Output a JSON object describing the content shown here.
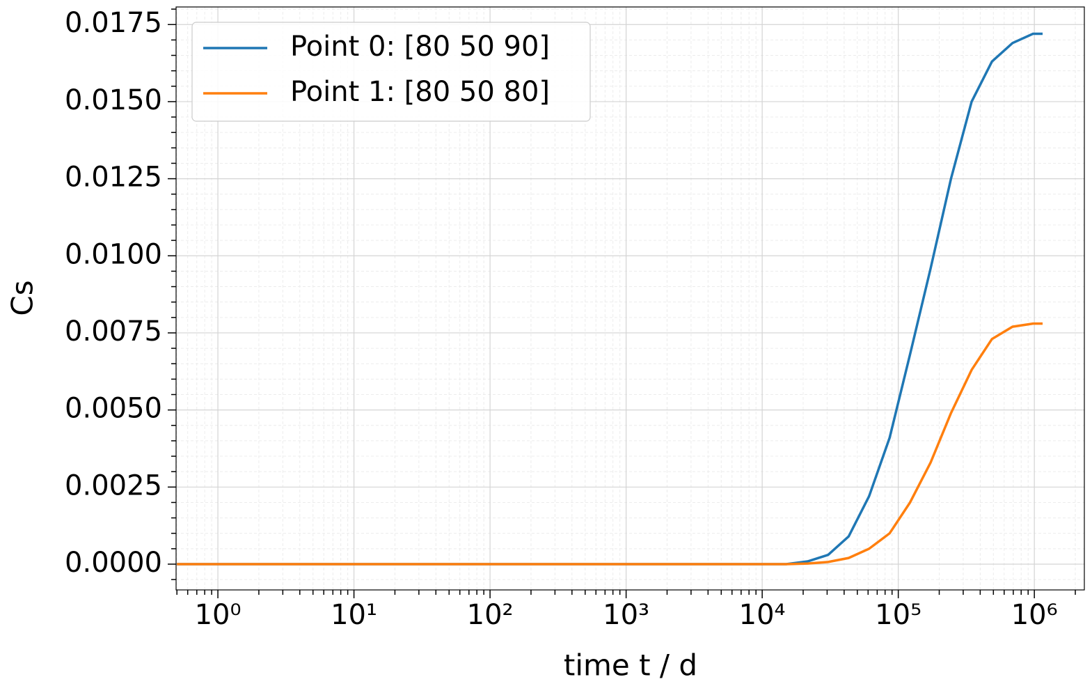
{
  "chart_data": {
    "type": "line",
    "xlabel": "time t / d",
    "ylabel": "Cs",
    "x": [
      0.5,
      10000,
      15000,
      21600,
      30500,
      43200,
      61000,
      86400,
      122000,
      173000,
      244000,
      346000,
      488000,
      691000,
      977000,
      1150000
    ],
    "series": [
      {
        "name": "Point 0: [80 50 90]",
        "color": "#1f77b4",
        "values": [
          0,
          0,
          0,
          9e-05,
          0.0003,
          0.0009,
          0.0022,
          0.0041,
          0.0068,
          0.0096,
          0.0125,
          0.015,
          0.0163,
          0.0169,
          0.0172,
          0.0172
        ]
      },
      {
        "name": "Point 1: [80 50 80]",
        "color": "#ff7f0e",
        "values": [
          0,
          0,
          0,
          2e-05,
          7e-05,
          0.0002,
          0.0005,
          0.001,
          0.002,
          0.0033,
          0.0049,
          0.0063,
          0.0073,
          0.0077,
          0.0078,
          0.0078
        ]
      }
    ],
    "xscale": "log",
    "xlim": [
      0.493,
      2330000
    ],
    "ylim": [
      -0.000836,
      0.01807
    ],
    "xticks": [
      {
        "value": 1,
        "label": "10⁰"
      },
      {
        "value": 10,
        "label": "10¹"
      },
      {
        "value": 100,
        "label": "10²"
      },
      {
        "value": 1000,
        "label": "10³"
      },
      {
        "value": 10000,
        "label": "10⁴"
      },
      {
        "value": 100000,
        "label": "10⁵"
      },
      {
        "value": 1000000,
        "label": "10⁶"
      }
    ],
    "yticks": [
      {
        "value": 0,
        "label": "0.0000"
      },
      {
        "value": 0.0025,
        "label": "0.0025"
      },
      {
        "value": 0.005,
        "label": "0.0050"
      },
      {
        "value": 0.0075,
        "label": "0.0075"
      },
      {
        "value": 0.01,
        "label": "0.0100"
      },
      {
        "value": 0.0125,
        "label": "0.0125"
      },
      {
        "value": 0.015,
        "label": "0.0150"
      },
      {
        "value": 0.0175,
        "label": "0.0175"
      }
    ],
    "grid": true,
    "minor_grid": true,
    "legend": "upper left"
  }
}
